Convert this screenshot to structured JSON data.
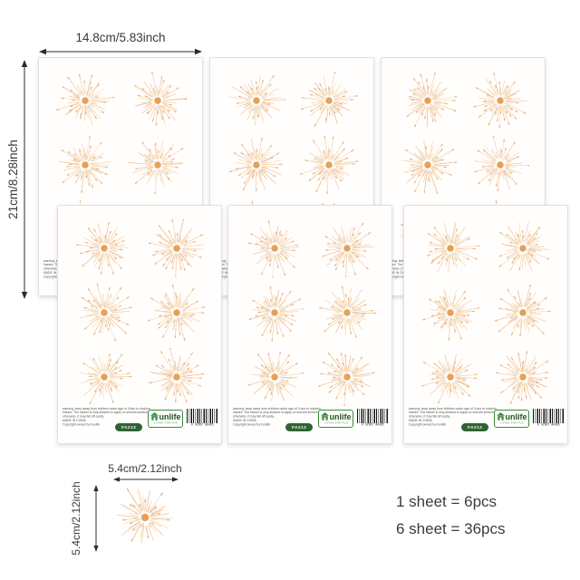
{
  "dimensions": {
    "sheet_width_label": "14.8cm/5.83inch",
    "sheet_height_label": "21cm/8.28inch",
    "sticker_width_label": "5.4cm/2.12inch",
    "sticker_height_label": "5.4cm/2.12inch"
  },
  "counts": {
    "line1": "1 sheet = 6pcs",
    "line2": "6 sheet = 36pcs"
  },
  "sheet": {
    "stickers_per_sheet": 6,
    "code_label": "FA213",
    "warning_lines": [
      "warning: keep away from children under age of 3 due to choking",
      "hazard. The sticker is only allowed to apply on smooth surface,",
      "otherwise, it may fall off easily.",
      "MADE IN CHINA",
      "Copyright owned by Funlife"
    ],
    "brand": {
      "name": "unlife",
      "tagline": "LIVING FOR FUN"
    },
    "barcode_digits": "6 92967 06485"
  },
  "colors": {
    "ray": "#f3d3ab",
    "ray_dark": "#eec197",
    "ray_tip": "#e9b583",
    "burst_center": "#e7a058",
    "pill_green": "#2e6434",
    "logo_green": "#3c8a3c",
    "dimension_text": "#3a3a3a",
    "counts_text": "#3c3c3c"
  }
}
